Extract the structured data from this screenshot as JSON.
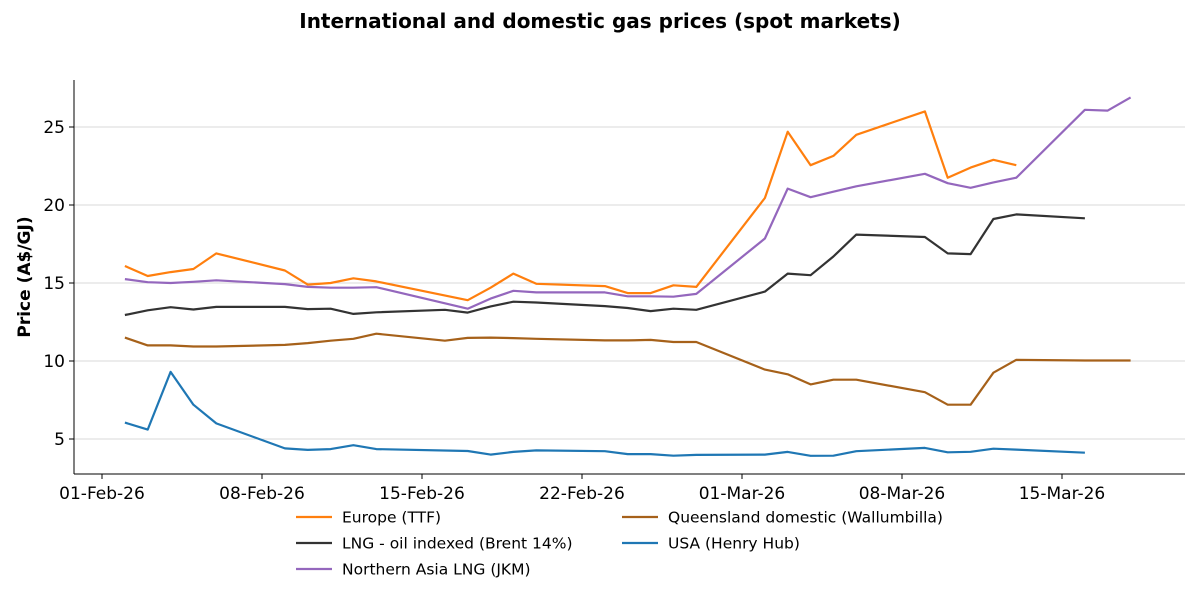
{
  "chart_data": {
    "type": "line",
    "title": "International and domestic gas prices (spot markets)",
    "xlabel": "",
    "ylabel": "Price (A$/GJ)",
    "ylim": [
      2.75,
      28
    ],
    "xlim": [
      "2026-01-31",
      "2026-03-20"
    ],
    "grid": "horizontal",
    "legend_position": "bottom",
    "x_ticks": [
      {
        "date": "2026-02-01",
        "label": "01-Feb-26"
      },
      {
        "date": "2026-02-08",
        "label": "08-Feb-26"
      },
      {
        "date": "2026-02-15",
        "label": "15-Feb-26"
      },
      {
        "date": "2026-02-22",
        "label": "22-Feb-26"
      },
      {
        "date": "2026-03-01",
        "label": "01-Mar-26"
      },
      {
        "date": "2026-03-08",
        "label": "08-Mar-26"
      },
      {
        "date": "2026-03-15",
        "label": "15-Mar-26"
      }
    ],
    "y_ticks": [
      5,
      10,
      15,
      20,
      25
    ],
    "x": [
      "2026-02-02",
      "2026-02-03",
      "2026-02-04",
      "2026-02-05",
      "2026-02-06",
      "2026-02-09",
      "2026-02-10",
      "2026-02-11",
      "2026-02-12",
      "2026-02-13",
      "2026-02-16",
      "2026-02-17",
      "2026-02-18",
      "2026-02-19",
      "2026-02-20",
      "2026-02-23",
      "2026-02-24",
      "2026-02-25",
      "2026-02-26",
      "2026-02-27",
      "2026-03-02",
      "2026-03-03",
      "2026-03-04",
      "2026-03-05",
      "2026-03-06",
      "2026-03-09",
      "2026-03-10",
      "2026-03-11",
      "2026-03-12",
      "2026-03-13",
      "2026-03-16",
      "2026-03-17",
      "2026-03-18"
    ],
    "series": [
      {
        "name": "Europe (TTF)",
        "color": "#ff7f0e",
        "values": [
          16.09,
          15.45,
          15.7,
          15.9,
          16.9,
          15.8,
          14.9,
          15.0,
          15.3,
          15.1,
          null,
          13.9,
          14.7,
          15.6,
          14.95,
          14.8,
          14.35,
          14.35,
          14.85,
          14.75,
          20.45,
          24.7,
          22.55,
          23.15,
          24.5,
          26.0,
          21.75,
          22.4,
          22.9,
          22.55,
          null,
          null,
          null
        ]
      },
      {
        "name": "LNG - oil indexed (Brent 14%)",
        "color": "#333333",
        "values": [
          12.95,
          13.25,
          13.45,
          13.3,
          13.47,
          13.47,
          13.33,
          13.35,
          13.02,
          13.12,
          13.28,
          13.1,
          13.5,
          13.8,
          13.75,
          13.52,
          13.4,
          13.2,
          13.35,
          13.28,
          14.45,
          15.6,
          15.5,
          16.7,
          18.1,
          17.95,
          16.9,
          16.85,
          19.1,
          19.4,
          19.15,
          null,
          null
        ]
      },
      {
        "name": "Northern Asia LNG (JKM)",
        "color": "#9467bd",
        "values": [
          15.25,
          15.05,
          15.0,
          15.08,
          15.17,
          14.93,
          14.75,
          14.7,
          14.7,
          14.73,
          null,
          13.35,
          14.0,
          14.5,
          14.4,
          14.4,
          14.15,
          14.15,
          14.12,
          14.3,
          17.85,
          21.05,
          20.5,
          20.85,
          21.2,
          22.0,
          21.4,
          21.1,
          21.45,
          21.75,
          26.1,
          26.05,
          26.9
        ]
      },
      {
        "name": "Queensland domestic (Wallumbilla)",
        "color": "#a6611a",
        "values": [
          11.5,
          11.0,
          11.0,
          10.93,
          10.93,
          11.03,
          11.15,
          11.3,
          11.42,
          11.75,
          11.3,
          11.48,
          11.5,
          11.47,
          11.42,
          11.32,
          11.32,
          11.35,
          11.22,
          11.22,
          9.45,
          9.15,
          8.5,
          8.8,
          8.8,
          8.0,
          7.2,
          7.2,
          9.25,
          10.08,
          10.03,
          null,
          10.03
        ]
      },
      {
        "name": "USA (Henry Hub)",
        "color": "#1f77b4",
        "values": [
          6.05,
          5.6,
          9.3,
          7.2,
          6.0,
          4.4,
          4.3,
          4.35,
          4.6,
          4.35,
          null,
          4.23,
          4.0,
          4.17,
          4.27,
          4.22,
          4.03,
          4.03,
          3.93,
          3.98,
          4.0,
          4.17,
          3.92,
          3.93,
          4.22,
          4.43,
          4.15,
          4.18,
          4.38,
          4.32,
          4.12,
          null,
          null
        ]
      }
    ]
  }
}
